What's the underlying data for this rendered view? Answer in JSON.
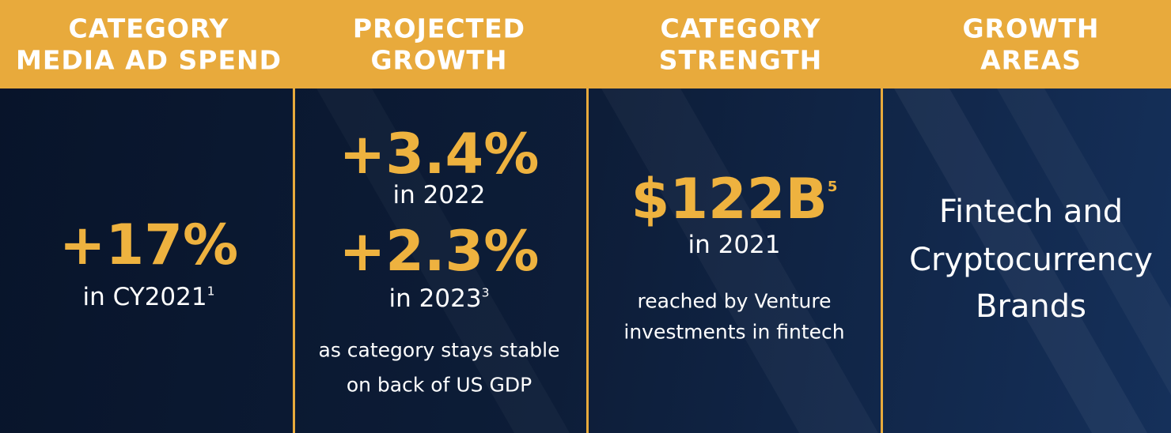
{
  "columns": [
    {
      "header": [
        "CATEGORY",
        "MEDIA AD SPEND"
      ],
      "stat": "+17%",
      "sub": "in CY2021",
      "sup": "1"
    },
    {
      "header": [
        "PROJECTED",
        "GROWTH"
      ],
      "stat1": "+3.4%",
      "sub1": "in 2022",
      "stat2": "+2.3%",
      "sub2": "in 2023",
      "sup": "3",
      "note": [
        "as category stays stable",
        "on back of US GDP"
      ]
    },
    {
      "header": [
        "CATEGORY",
        "STRENGTH"
      ],
      "stat": "$122B",
      "sup": "5",
      "sub": "in 2021",
      "note": [
        "reached by Venture",
        "investments in fintech"
      ]
    },
    {
      "header": [
        "GROWTH",
        "AREAS"
      ],
      "lines": [
        "Fintech and",
        "Cryptocurrency",
        "Brands"
      ]
    }
  ]
}
